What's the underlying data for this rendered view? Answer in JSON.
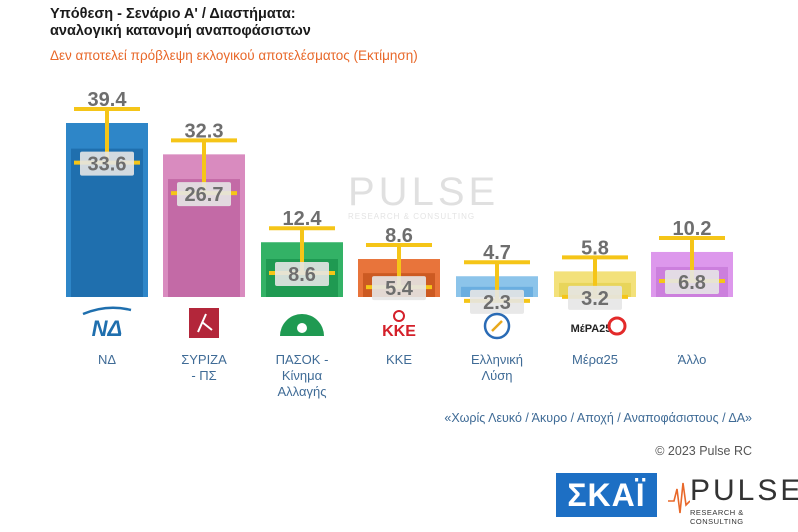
{
  "header": {
    "title_line1": "Υπόθεση - Σενάριο Α' / Διαστήματα:",
    "title_line2": "αναλογική κατανομή αναποφάσιστων",
    "subtitle": "Δεν αποτελεί πρόβλεψη εκλογικού αποτελέσματος   (Εκτίμηση)"
  },
  "footer": {
    "note": "«Χωρίς Λευκό / Άκυρο / Αποχή / Αναποφάσιστους / ΔΑ»",
    "copyright": "© 2023 Pulse RC"
  },
  "logos": {
    "skai": "ΣΚΑΪ",
    "pulse": "PULSE",
    "pulse_sub": "RESEARCH & CONSULTING",
    "watermark": "PULSE",
    "watermark_sub": "RESEARCH & CONSULTING"
  },
  "party_logos": {
    "nd": "ΝΔ",
    "kke": "ΚΚΕ",
    "mera25": "ΜέΡΑ25"
  },
  "colors": {
    "error_bar": "#f5c518",
    "value_box": "#e6e6e6"
  },
  "chart_data": {
    "type": "bar",
    "categories": [
      "ΝΔ",
      "ΣΥΡΙΖΑ - ΠΣ",
      "ΠΑΣΟΚ - Κίνημα Αλλαγής",
      "ΚΚΕ",
      "Ελληνική Λύση",
      "Μέρα25",
      "Άλλο"
    ],
    "category_lines": [
      [
        "ΝΔ"
      ],
      [
        "ΣΥΡΙΖΑ",
        "- ΠΣ"
      ],
      [
        "ΠΑΣΟΚ -",
        "Κίνημα",
        "Αλλαγής"
      ],
      [
        "ΚΚΕ"
      ],
      [
        "Ελληνική",
        "Λύση"
      ],
      [
        "Μέρα25"
      ],
      [
        "Άλλο"
      ]
    ],
    "series": [
      {
        "values": [
          39.4,
          32.3,
          12.4,
          8.6,
          4.7,
          5.8,
          10.2
        ]
      },
      {
        "values": [
          33.6,
          26.7,
          8.6,
          5.4,
          2.3,
          3.2,
          6.8
        ]
      }
    ],
    "high_labels": [
      "39.4",
      "32.3",
      "12.4",
      "8.6",
      "4.7",
      "5.8",
      "10.2"
    ],
    "low_labels": [
      "33.6",
      "26.7",
      "8.6",
      "5.4",
      "2.3",
      "3.2",
      "6.8"
    ],
    "outer_colors": [
      "#2e86c8",
      "#d98bbf",
      "#33b266",
      "#e8743b",
      "#8cc4ea",
      "#f3e17a",
      "#dd98ec"
    ],
    "inner_colors": [
      "#1f6fae",
      "#c36aa6",
      "#1f9a52",
      "#cc5a22",
      "#6aaee0",
      "#e8d55a",
      "#cc7fdd"
    ],
    "ylim": [
      0,
      45
    ],
    "grid": false,
    "legend": "none"
  }
}
